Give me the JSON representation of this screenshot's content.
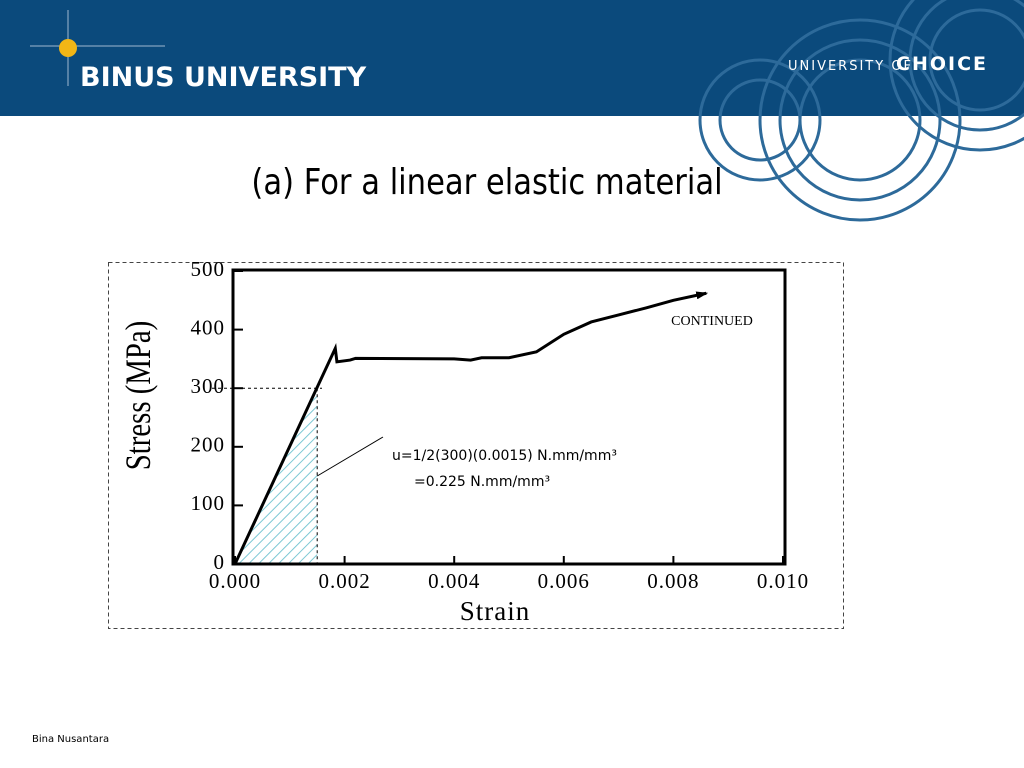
{
  "header": {
    "brand": "BINUS UNIVERSITY",
    "tagline_prefix": "UNIVERSITY OF",
    "tagline": "CHOICE"
  },
  "footer": "Bina Nusantara",
  "chart_data": {
    "type": "line",
    "title": "(a) For a linear elastic material",
    "x_label": "Strain",
    "y_label": "Stress (MPa)",
    "x": [
      0,
      0.00183,
      0.00186,
      0.0021,
      0.0022,
      0.004,
      0.0043,
      0.0045,
      0.005,
      0.0055,
      0.006,
      0.0065,
      0.007,
      0.0075,
      0.008,
      0.0086
    ],
    "values": [
      0,
      368,
      345,
      348,
      351,
      350,
      348,
      352,
      352,
      362,
      392,
      413,
      425,
      437,
      450,
      462
    ],
    "color": "#000000",
    "xlim": [
      0,
      0.01
    ],
    "xticks": [
      {
        "value": 0,
        "label": "0.000"
      },
      0.002,
      0.004,
      0.006,
      0.008,
      {
        "value": 0.01,
        "label": "0.010"
      }
    ],
    "ylim": [
      0,
      500
    ],
    "yticks": [
      0,
      100,
      200,
      300,
      400,
      500
    ],
    "yield_point": {
      "x": 0.0015,
      "y": 300
    },
    "annotations": [
      "CONTINUED",
      "u=1/2(300)(0.0015) N.mm/mm³",
      "=0.225 N.mm/mm³"
    ]
  }
}
